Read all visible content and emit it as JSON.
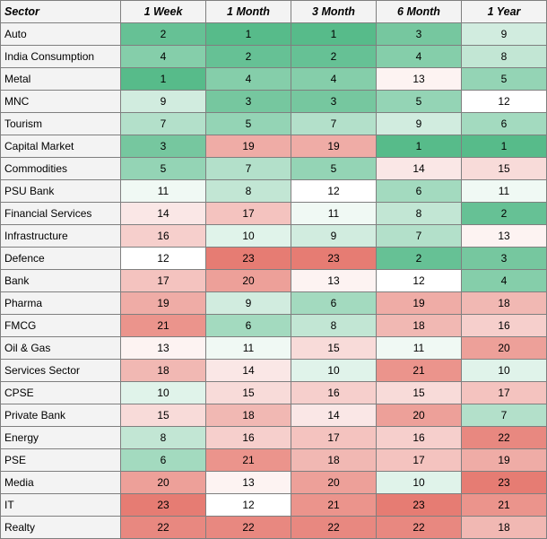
{
  "chart_data": {
    "type": "heatmap",
    "columns": [
      "Sector",
      "1 Week",
      "1 Month",
      "3 Month",
      "6 Month",
      "1 Year"
    ],
    "rows": [
      {
        "sector": "Auto",
        "values": [
          2,
          1,
          1,
          3,
          9
        ]
      },
      {
        "sector": "India Consumption",
        "values": [
          4,
          2,
          2,
          4,
          8
        ]
      },
      {
        "sector": "Metal",
        "values": [
          1,
          4,
          4,
          13,
          5
        ]
      },
      {
        "sector": "MNC",
        "values": [
          9,
          3,
          3,
          5,
          12
        ]
      },
      {
        "sector": "Tourism",
        "values": [
          7,
          5,
          7,
          9,
          6
        ]
      },
      {
        "sector": "Capital Market",
        "values": [
          3,
          19,
          19,
          1,
          1
        ]
      },
      {
        "sector": "Commodities",
        "values": [
          5,
          7,
          5,
          14,
          15
        ]
      },
      {
        "sector": "PSU Bank",
        "values": [
          11,
          8,
          12,
          6,
          11
        ]
      },
      {
        "sector": "Financial Services",
        "values": [
          14,
          17,
          11,
          8,
          2
        ]
      },
      {
        "sector": "Infrastructure",
        "values": [
          16,
          10,
          9,
          7,
          13
        ]
      },
      {
        "sector": "Defence",
        "values": [
          12,
          23,
          23,
          2,
          3
        ]
      },
      {
        "sector": "Bank",
        "values": [
          17,
          20,
          13,
          12,
          4
        ]
      },
      {
        "sector": "Pharma",
        "values": [
          19,
          9,
          6,
          19,
          18
        ]
      },
      {
        "sector": "FMCG",
        "values": [
          21,
          6,
          8,
          18,
          16
        ]
      },
      {
        "sector": "Oil & Gas",
        "values": [
          13,
          11,
          15,
          11,
          20
        ]
      },
      {
        "sector": "Services Sector",
        "values": [
          18,
          14,
          10,
          21,
          10
        ]
      },
      {
        "sector": "CPSE",
        "values": [
          10,
          15,
          16,
          15,
          17
        ]
      },
      {
        "sector": "Private Bank",
        "values": [
          15,
          18,
          14,
          20,
          7
        ]
      },
      {
        "sector": "Energy",
        "values": [
          8,
          16,
          17,
          16,
          22
        ]
      },
      {
        "sector": "PSE",
        "values": [
          6,
          21,
          18,
          17,
          19
        ]
      },
      {
        "sector": "Media",
        "values": [
          20,
          13,
          20,
          10,
          23
        ]
      },
      {
        "sector": "IT",
        "values": [
          23,
          12,
          21,
          23,
          21
        ]
      },
      {
        "sector": "Realty",
        "values": [
          22,
          22,
          22,
          22,
          18
        ]
      }
    ],
    "color_scale": {
      "min": 1,
      "mid": 12,
      "max": 23,
      "min_color": "#57bb8a",
      "mid_color": "#ffffff",
      "max_color": "#e67c73"
    }
  }
}
